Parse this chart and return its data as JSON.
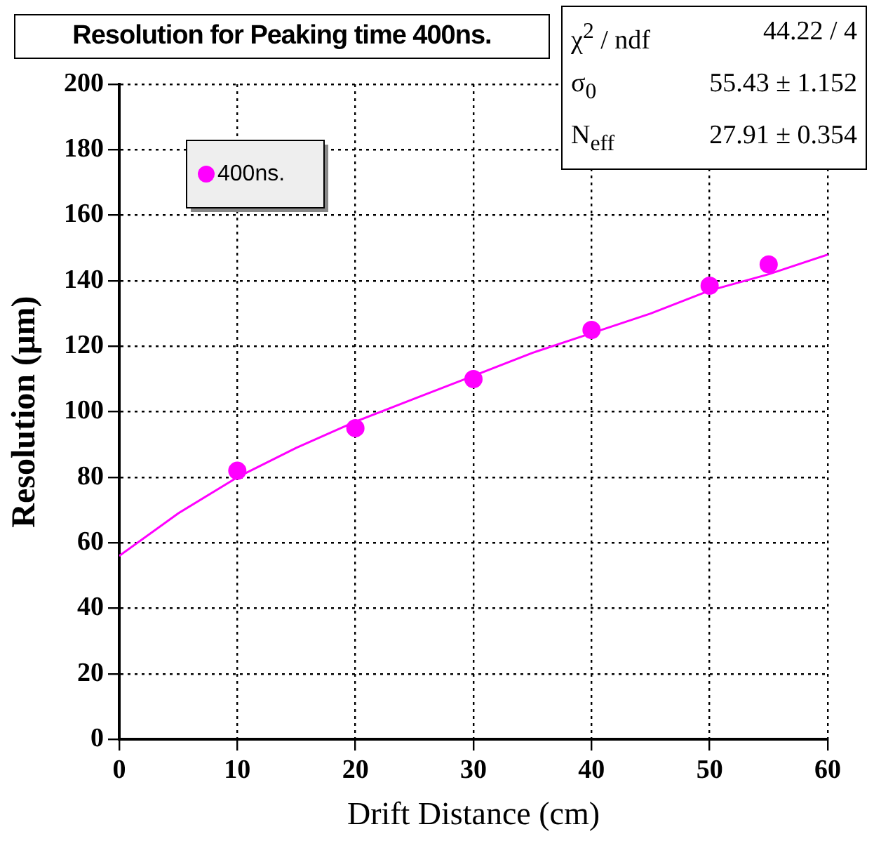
{
  "chart_data": {
    "type": "scatter",
    "title": "Resolution for Peaking time 400ns.",
    "xlabel": "Drift Distance (cm)",
    "ylabel": "Resolution (µm)",
    "x": [
      10,
      20,
      30,
      40,
      50,
      55
    ],
    "series": [
      {
        "name": "400ns.",
        "color": "#ff00ff",
        "marker": "circle",
        "values": [
          82,
          95,
          110,
          125,
          138.5,
          145
        ]
      },
      {
        "type": "line",
        "color": "#ff00ff",
        "marker": "none",
        "x": [
          0,
          5,
          10,
          15,
          20,
          25,
          30,
          35,
          40,
          45,
          50,
          55,
          60
        ],
        "values": [
          56,
          69,
          80,
          89,
          97,
          104,
          111,
          118,
          124,
          130,
          137,
          142,
          148
        ]
      }
    ],
    "xlim": [
      0,
      60
    ],
    "xticks": [
      0,
      10,
      20,
      30,
      40,
      50,
      60
    ],
    "ylim": [
      0,
      200
    ],
    "yticks": [
      0,
      20,
      40,
      60,
      80,
      100,
      120,
      140,
      160,
      180,
      200
    ],
    "grid": true,
    "legend": "top left",
    "line_style": "solid",
    "annotations": [
      "χ$^{2}$ / ndf\t44.22 / 4",
      "σ$_{0}$\t55.43 ± 1.152",
      "N$_{eff}$\t27.91 ± 0.354"
    ]
  }
}
